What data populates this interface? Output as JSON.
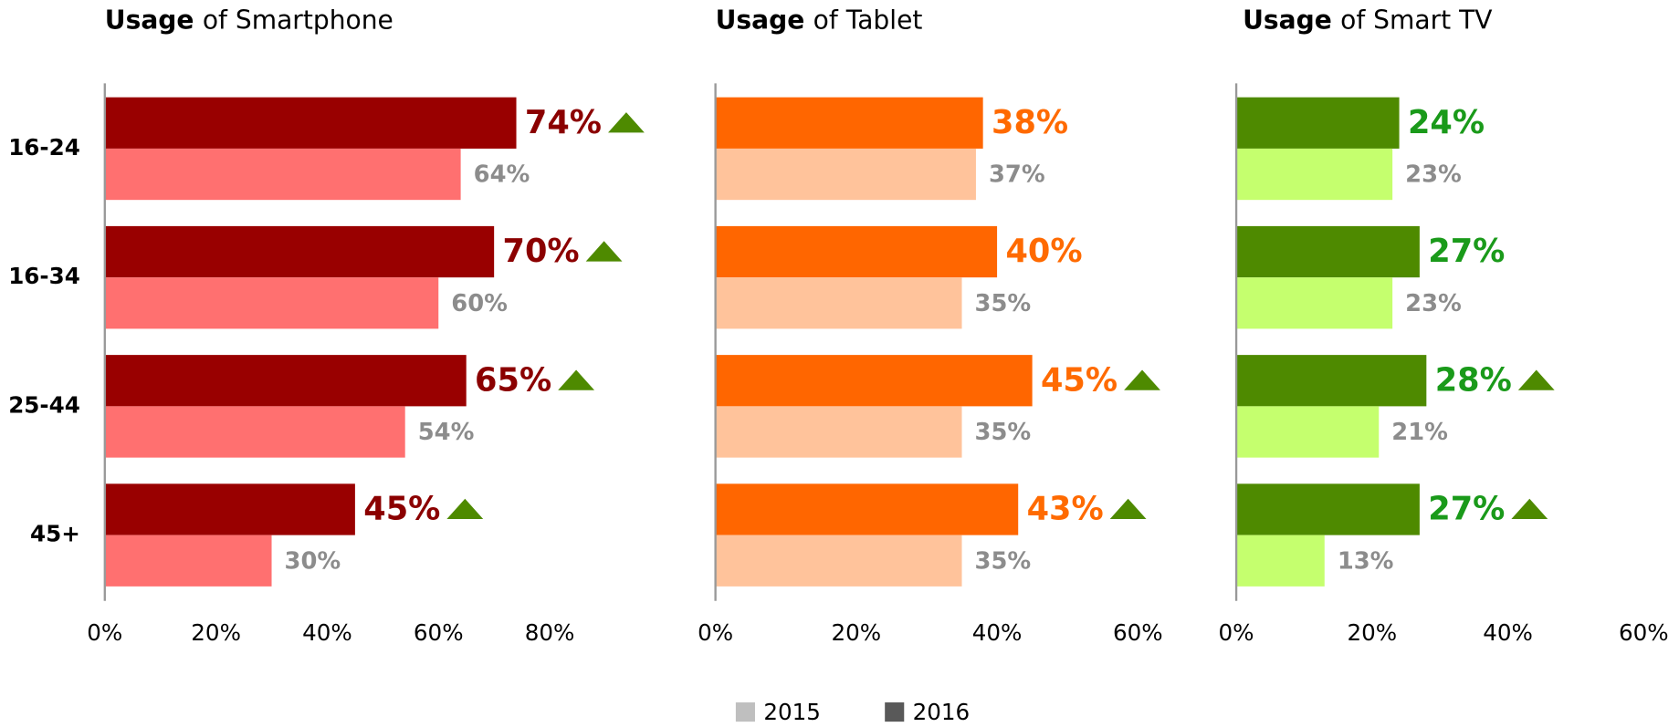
{
  "chart_data": [
    {
      "type": "hbar",
      "title_parts": [
        "Usage",
        "of Smartphone"
      ],
      "categories": [
        "16-24",
        "16-34",
        "25-44",
        "45+"
      ],
      "xlim": [
        0,
        100
      ],
      "xticks": [
        {
          "value": 0,
          "label": "0%"
        },
        {
          "value": 20,
          "label": "20%"
        },
        {
          "value": 40,
          "label": "40%"
        },
        {
          "value": 60,
          "label": "60%"
        },
        {
          "value": 80,
          "label": "80%"
        }
      ],
      "series": [
        {
          "color": "#ff7070",
          "label_color": "#8c8c8c",
          "values": [
            64,
            60,
            54,
            30
          ],
          "value_labels": [
            "64%",
            "60%",
            "54%",
            "30%"
          ]
        },
        {
          "color": "#990000",
          "label_color": "#8b0000",
          "values": [
            74,
            70,
            65,
            45
          ],
          "value_labels": [
            "74%",
            "70%",
            "65%",
            "45%"
          ],
          "up_arrow": [
            true,
            true,
            true,
            true
          ]
        }
      ]
    },
    {
      "type": "hbar",
      "title_parts": [
        "Usage",
        "of Tablet"
      ],
      "xlim": [
        0,
        60
      ],
      "xticks": [
        {
          "value": 0,
          "label": "0%"
        },
        {
          "value": 20,
          "label": "20%"
        },
        {
          "value": 40,
          "label": "40%"
        },
        {
          "value": 60,
          "label": "60%"
        }
      ],
      "series": [
        {
          "color": "#ffc39b",
          "label_color": "#8c8c8c",
          "values": [
            37,
            35,
            35,
            35
          ],
          "value_labels": [
            "37%",
            "35%",
            "35%",
            "35%"
          ]
        },
        {
          "color": "#ff6600",
          "label_color": "#ff6a00",
          "values": [
            38,
            40,
            45,
            43
          ],
          "value_labels": [
            "38%",
            "40%",
            "45%",
            "43%"
          ],
          "up_arrow": [
            false,
            false,
            true,
            true
          ]
        }
      ]
    },
    {
      "type": "hbar",
      "title_parts": [
        "Usage",
        "of Smart TV"
      ],
      "xlim": [
        0,
        60
      ],
      "xticks": [
        {
          "value": 0,
          "label": "0%"
        },
        {
          "value": 20,
          "label": "20%"
        },
        {
          "value": 40,
          "label": "40%"
        },
        {
          "value": 60,
          "label": "60%"
        }
      ],
      "series": [
        {
          "color": "#c5ff6e",
          "label_color": "#8c8c8c",
          "values": [
            23,
            23,
            21,
            13
          ],
          "value_labels": [
            "23%",
            "23%",
            "21%",
            "13%"
          ]
        },
        {
          "color": "#4e8a00",
          "label_color": "#1a9a1a",
          "values": [
            24,
            27,
            28,
            27
          ],
          "value_labels": [
            "24%",
            "27%",
            "28%",
            "27%"
          ],
          "up_arrow": [
            false,
            false,
            true,
            true
          ]
        }
      ]
    }
  ],
  "arrow_color": "#4e8a00",
  "legend": [
    {
      "name": "2015",
      "color": "#bfbfbf"
    },
    {
      "name": "2016",
      "color": "#595959"
    }
  ]
}
